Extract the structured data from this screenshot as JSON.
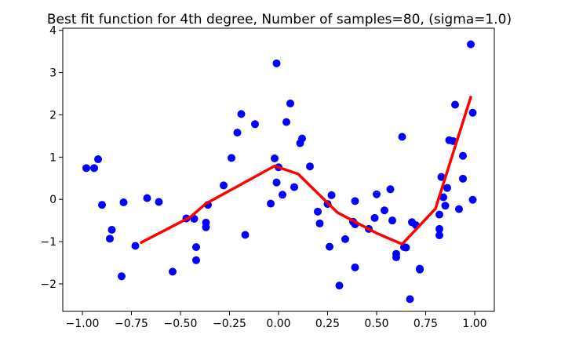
{
  "chart_data": {
    "type": "scatter",
    "title": "Best fit function for 4th degree, Number of samples=80, (sigma=1.0)",
    "xlabel": "",
    "ylabel": "",
    "xlim": [
      -1.1,
      1.1
    ],
    "ylim": [
      -2.65,
      4.05
    ],
    "grid": false,
    "x_ticks": [
      {
        "value": -1.0,
        "label": "−1.00"
      },
      {
        "value": -0.75,
        "label": "−0.75"
      },
      {
        "value": -0.5,
        "label": "−0.50"
      },
      {
        "value": -0.25,
        "label": "−0.25"
      },
      {
        "value": 0.0,
        "label": "0.00"
      },
      {
        "value": 0.25,
        "label": "0.25"
      },
      {
        "value": 0.5,
        "label": "0.50"
      },
      {
        "value": 0.75,
        "label": "0.75"
      },
      {
        "value": 1.0,
        "label": "1.00"
      }
    ],
    "y_ticks": [
      {
        "value": -2,
        "label": "−2"
      },
      {
        "value": -1,
        "label": "−1"
      },
      {
        "value": 0,
        "label": "0"
      },
      {
        "value": 1,
        "label": "1"
      },
      {
        "value": 2,
        "label": "2"
      },
      {
        "value": 3,
        "label": "3"
      },
      {
        "value": 4,
        "label": "4"
      }
    ],
    "series": [
      {
        "kind": "scatter",
        "color": "#0000ff",
        "points": [
          [
            -0.98,
            0.74
          ],
          [
            -0.94,
            0.74
          ],
          [
            -0.92,
            0.95
          ],
          [
            -0.9,
            -0.13
          ],
          [
            -0.86,
            -0.93
          ],
          [
            -0.85,
            -0.72
          ],
          [
            -0.8,
            -1.82
          ],
          [
            -0.79,
            -0.07
          ],
          [
            -0.73,
            -1.1
          ],
          [
            -0.67,
            0.03
          ],
          [
            -0.61,
            -0.06
          ],
          [
            -0.54,
            -1.71
          ],
          [
            -0.47,
            -0.45
          ],
          [
            -0.43,
            -0.46
          ],
          [
            -0.42,
            -1.13
          ],
          [
            -0.42,
            -1.44
          ],
          [
            -0.37,
            -0.66
          ],
          [
            -0.37,
            -0.55
          ],
          [
            -0.36,
            -0.13
          ],
          [
            -0.28,
            0.33
          ],
          [
            -0.24,
            0.98
          ],
          [
            -0.21,
            1.58
          ],
          [
            -0.19,
            2.02
          ],
          [
            -0.17,
            -0.84
          ],
          [
            -0.12,
            1.78
          ],
          [
            -0.04,
            -0.1
          ],
          [
            -0.02,
            0.97
          ],
          [
            -0.01,
            3.22
          ],
          [
            -0.01,
            0.4
          ],
          [
            0.0,
            0.76
          ],
          [
            0.02,
            0.11
          ],
          [
            0.04,
            1.83
          ],
          [
            0.06,
            2.27
          ],
          [
            0.08,
            0.29
          ],
          [
            0.11,
            1.33
          ],
          [
            0.12,
            1.44
          ],
          [
            0.16,
            0.78
          ],
          [
            0.2,
            -0.29
          ],
          [
            0.21,
            -0.57
          ],
          [
            0.25,
            -0.11
          ],
          [
            0.26,
            -1.12
          ],
          [
            0.27,
            0.1
          ],
          [
            0.31,
            -2.04
          ],
          [
            0.34,
            -0.94
          ],
          [
            0.38,
            -0.53
          ],
          [
            0.39,
            -0.59
          ],
          [
            0.39,
            -0.04
          ],
          [
            0.39,
            -1.61
          ],
          [
            0.46,
            -0.7
          ],
          [
            0.49,
            -0.44
          ],
          [
            0.5,
            0.12
          ],
          [
            0.54,
            -0.26
          ],
          [
            0.57,
            0.24
          ],
          [
            0.58,
            -0.5
          ],
          [
            0.6,
            -1.29
          ],
          [
            0.6,
            -1.37
          ],
          [
            0.63,
            1.48
          ],
          [
            0.64,
            -1.13
          ],
          [
            0.65,
            -1.14
          ],
          [
            0.67,
            -2.36
          ],
          [
            0.68,
            -0.54
          ],
          [
            0.7,
            -0.61
          ],
          [
            0.72,
            -1.64
          ],
          [
            0.72,
            -1.66
          ],
          [
            0.82,
            -0.85
          ],
          [
            0.82,
            -0.7
          ],
          [
            0.82,
            -0.36
          ],
          [
            0.83,
            0.53
          ],
          [
            0.84,
            0.05
          ],
          [
            0.85,
            -0.15
          ],
          [
            0.86,
            0.27
          ],
          [
            0.89,
            1.38
          ],
          [
            0.9,
            2.24
          ],
          [
            0.92,
            -0.23
          ],
          [
            0.94,
            0.49
          ],
          [
            0.94,
            1.03
          ],
          [
            0.98,
            3.67
          ],
          [
            0.99,
            -0.01
          ],
          [
            0.99,
            2.05
          ],
          [
            0.87,
            1.4
          ]
        ]
      },
      {
        "kind": "line",
        "color": "#ff0000",
        "points": [
          [
            -0.7,
            -1.02
          ],
          [
            -0.45,
            -0.42
          ],
          [
            -0.37,
            -0.1
          ],
          [
            -0.02,
            0.79
          ],
          [
            0.1,
            0.6
          ],
          [
            0.3,
            -0.31
          ],
          [
            0.5,
            -0.8
          ],
          [
            0.63,
            -1.06
          ],
          [
            0.8,
            -0.22
          ],
          [
            0.98,
            2.42
          ]
        ]
      }
    ]
  }
}
